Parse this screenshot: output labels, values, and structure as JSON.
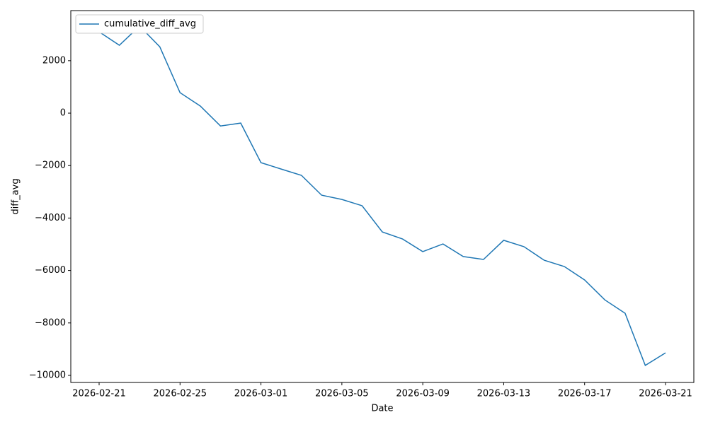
{
  "chart_data": {
    "type": "line",
    "x_label": "Date",
    "y_label": "diff_avg",
    "x": [
      "2026-02-21",
      "2026-02-22",
      "2026-02-23",
      "2026-02-24",
      "2026-02-25",
      "2026-02-26",
      "2026-02-27",
      "2026-02-28",
      "2026-03-01",
      "2026-03-02",
      "2026-03-03",
      "2026-03-04",
      "2026-03-05",
      "2026-03-06",
      "2026-03-07",
      "2026-03-08",
      "2026-03-09",
      "2026-03-10",
      "2026-03-11",
      "2026-03-12",
      "2026-03-13",
      "2026-03-14",
      "2026-03-15",
      "2026-03-16",
      "2026-03-17",
      "2026-03-18",
      "2026-03-19",
      "2026-03-20",
      "2026-03-21"
    ],
    "series": [
      {
        "name": "cumulative_diff_avg",
        "color": "#1f77b4",
        "values": [
          3100,
          2590,
          3320,
          2530,
          780,
          270,
          -490,
          -380,
          -1890,
          -2130,
          -2370,
          -3130,
          -3290,
          -3530,
          -4530,
          -4800,
          -5280,
          -4990,
          -5470,
          -5580,
          -4850,
          -5090,
          -5610,
          -5850,
          -6360,
          -7120,
          -7630,
          -9620,
          -9140
        ]
      }
    ],
    "xlim": [
      "2026-02-19T14:24Z",
      "2026-03-22T09:36Z"
    ],
    "xticks": [
      "2026-02-21",
      "2026-02-25",
      "2026-03-01",
      "2026-03-05",
      "2026-03-09",
      "2026-03-13",
      "2026-03-17",
      "2026-03-21"
    ],
    "ylim": [
      -10270,
      3910
    ],
    "yticks": [
      {
        "value": -10000,
        "label": "−10000"
      },
      {
        "value": -8000,
        "label": "−8000"
      },
      {
        "value": -6000,
        "label": "−6000"
      },
      {
        "value": -4000,
        "label": "−4000"
      },
      {
        "value": -2000,
        "label": "−2000"
      },
      0,
      2000
    ],
    "legend": "upper left",
    "grid": false
  }
}
